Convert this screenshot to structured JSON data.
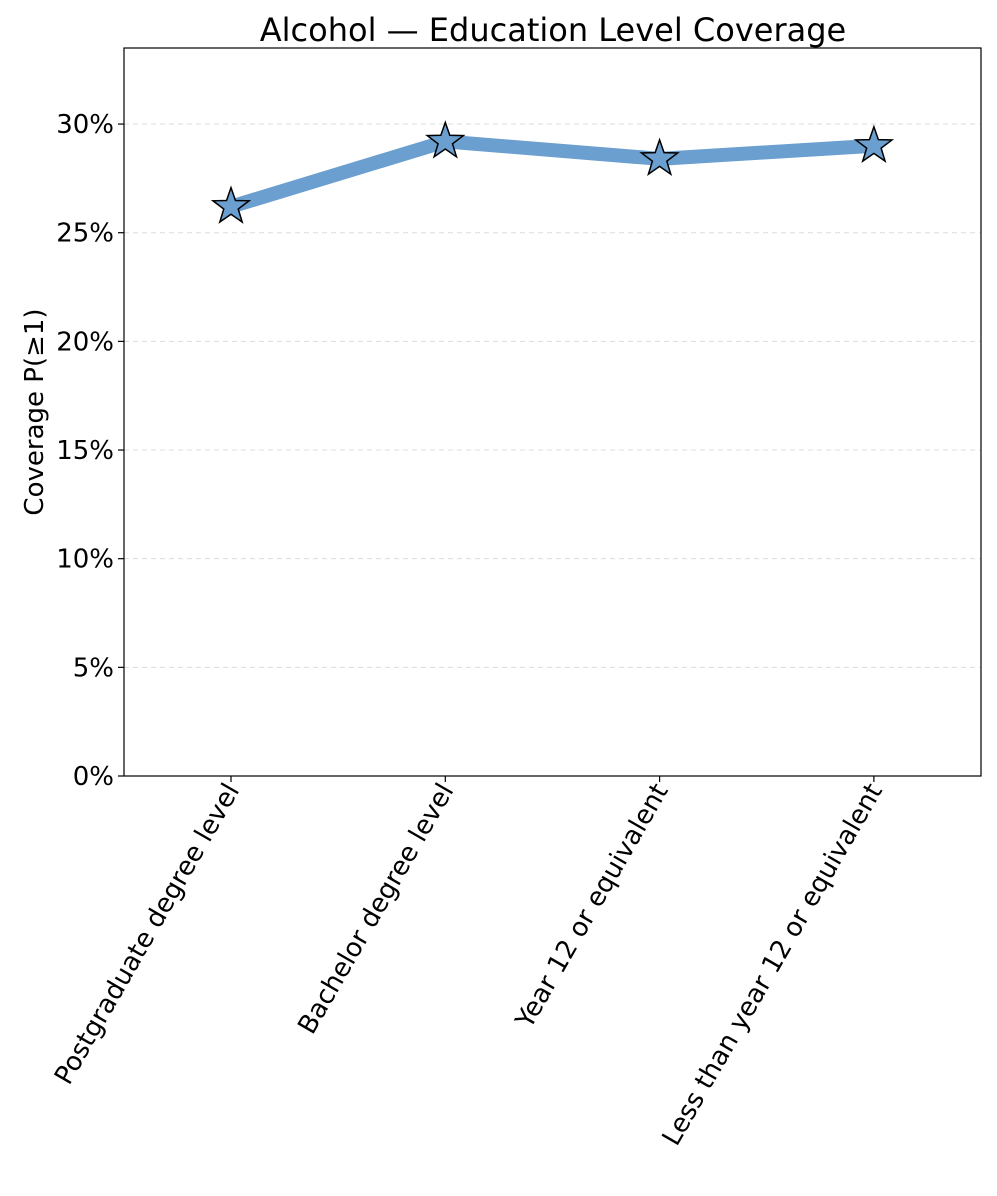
{
  "chart_data": {
    "type": "line",
    "title": "Alcohol — Education Level Coverage",
    "xlabel": "",
    "ylabel": "Coverage P(≥1)",
    "categories": [
      "Postgraduate degree level",
      "Bachelor degree level",
      "Year 12 or equivalent",
      "Less than year 12 or equivalent"
    ],
    "series": [
      {
        "values": [
          0.262,
          0.292,
          0.284,
          0.29
        ]
      }
    ],
    "ylim": [
      0,
      0.335
    ],
    "yticks": [
      0,
      0.05,
      0.1,
      0.15,
      0.2,
      0.25,
      0.3
    ],
    "ytick_labels": [
      "0%",
      "5%",
      "10%",
      "15%",
      "20%",
      "25%",
      "30%"
    ],
    "marker": "star",
    "line_color": "#6a9fcf",
    "marker_fill": "#6a9fcf",
    "marker_edge": "#000000",
    "grid": true,
    "grid_axis": "y",
    "legend": "none"
  }
}
